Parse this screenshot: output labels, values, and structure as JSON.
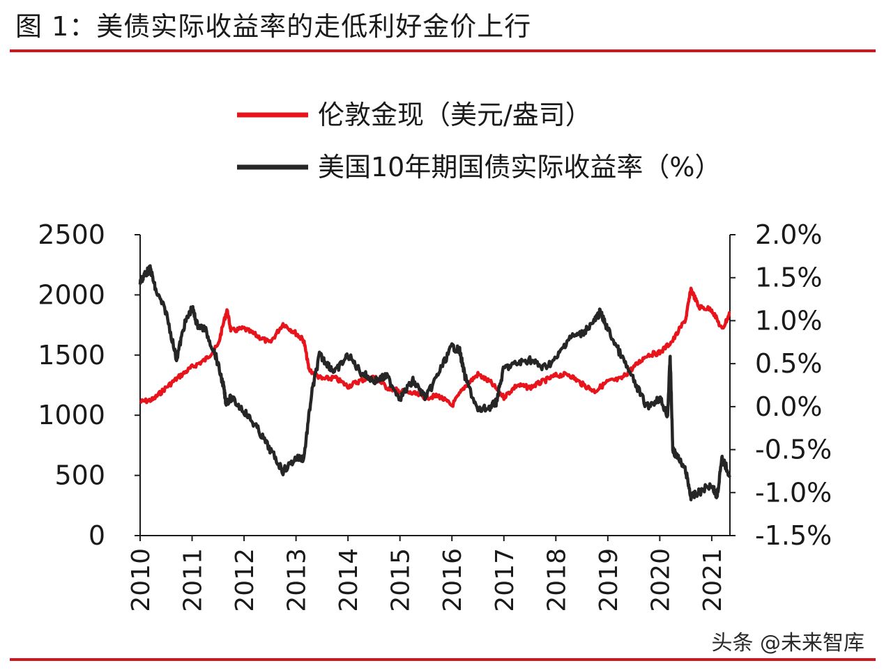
{
  "title": "图 1：美债实际收益率的走低利好金价上行",
  "watermark": "头条 @未来智库",
  "colors": {
    "accent": "#d4151c",
    "gold": "#e8141c",
    "yield": "#262626",
    "axis": "#1a1a1a"
  },
  "chart_data": {
    "type": "line",
    "x_tick_labels": [
      "2010",
      "2011",
      "2012",
      "2013",
      "2014",
      "2015",
      "2016",
      "2017",
      "2018",
      "2019",
      "2020",
      "2021"
    ],
    "left_axis": {
      "ylim": [
        0,
        2500
      ],
      "ticks": [
        0,
        500,
        1000,
        1500,
        2000,
        2500
      ]
    },
    "right_axis": {
      "ylim": [
        -1.5,
        2.0
      ],
      "ticks": [
        "-1.5%",
        "-1.0%",
        "-0.5%",
        "0.0%",
        "0.5%",
        "1.0%",
        "1.5%",
        "2.0%"
      ],
      "unit": "%"
    },
    "legend": {
      "placement": "top-center"
    },
    "series": [
      {
        "name": "伦敦金现（美元/盎司）",
        "axis": "left",
        "color": "#e8141c",
        "x": [
          2010.0,
          2010.25,
          2010.5,
          2010.75,
          2011.0,
          2011.25,
          2011.5,
          2011.67,
          2011.75,
          2012.0,
          2012.25,
          2012.5,
          2012.75,
          2013.0,
          2013.15,
          2013.25,
          2013.5,
          2013.75,
          2014.0,
          2014.25,
          2014.5,
          2014.75,
          2015.0,
          2015.25,
          2015.5,
          2015.75,
          2016.0,
          2016.25,
          2016.5,
          2016.75,
          2017.0,
          2017.25,
          2017.5,
          2017.75,
          2018.0,
          2018.25,
          2018.5,
          2018.75,
          2019.0,
          2019.25,
          2019.5,
          2019.75,
          2020.0,
          2020.25,
          2020.5,
          2020.6,
          2020.75,
          2021.0,
          2021.2,
          2021.35
        ],
        "values": [
          1110,
          1130,
          1230,
          1320,
          1400,
          1460,
          1580,
          1880,
          1700,
          1720,
          1660,
          1600,
          1760,
          1680,
          1620,
          1380,
          1300,
          1310,
          1240,
          1290,
          1320,
          1230,
          1200,
          1180,
          1150,
          1160,
          1080,
          1240,
          1340,
          1270,
          1150,
          1250,
          1230,
          1280,
          1330,
          1340,
          1260,
          1200,
          1280,
          1300,
          1400,
          1500,
          1520,
          1620,
          1800,
          2050,
          1900,
          1880,
          1710,
          1850
        ]
      },
      {
        "name": "美国10年期国债实际收益率（%）",
        "axis": "right",
        "color": "#262626",
        "x": [
          2010.0,
          2010.1,
          2010.2,
          2010.3,
          2010.5,
          2010.7,
          2010.85,
          2011.0,
          2011.1,
          2011.25,
          2011.45,
          2011.6,
          2011.65,
          2011.75,
          2012.0,
          2012.25,
          2012.5,
          2012.75,
          2013.0,
          2013.15,
          2013.3,
          2013.45,
          2013.6,
          2013.75,
          2014.0,
          2014.25,
          2014.5,
          2014.75,
          2015.0,
          2015.25,
          2015.5,
          2015.75,
          2016.0,
          2016.15,
          2016.25,
          2016.5,
          2016.75,
          2016.85,
          2017.0,
          2017.25,
          2017.5,
          2017.75,
          2018.0,
          2018.25,
          2018.5,
          2018.75,
          2018.85,
          2019.0,
          2019.25,
          2019.5,
          2019.75,
          2020.0,
          2020.15,
          2020.2,
          2020.25,
          2020.3,
          2020.5,
          2020.6,
          2020.75,
          2021.0,
          2021.1,
          2021.2,
          2021.35
        ],
        "values": [
          1.45,
          1.55,
          1.6,
          1.35,
          1.1,
          0.55,
          0.95,
          1.15,
          0.95,
          0.9,
          0.6,
          0.25,
          0.05,
          0.1,
          -0.05,
          -0.25,
          -0.5,
          -0.75,
          -0.6,
          -0.6,
          0.15,
          0.6,
          0.5,
          0.4,
          0.6,
          0.4,
          0.3,
          0.35,
          0.1,
          0.3,
          0.1,
          0.4,
          0.7,
          0.65,
          0.35,
          -0.05,
          0.0,
          0.05,
          0.45,
          0.5,
          0.55,
          0.45,
          0.55,
          0.8,
          0.85,
          1.0,
          1.1,
          0.9,
          0.6,
          0.3,
          0.0,
          0.1,
          -0.1,
          0.6,
          -0.5,
          -0.55,
          -0.75,
          -1.05,
          -1.0,
          -0.9,
          -1.05,
          -0.6,
          -0.8
        ]
      }
    ]
  }
}
